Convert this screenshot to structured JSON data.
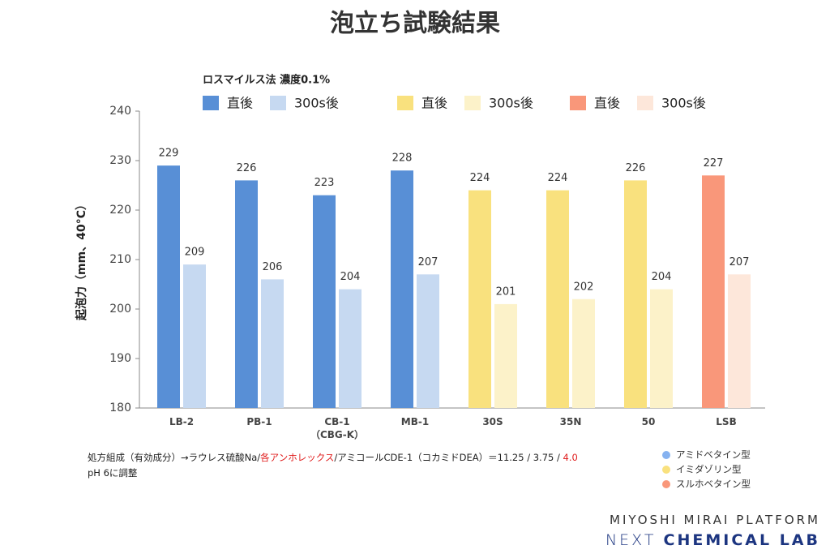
{
  "chart_data": {
    "type": "bar",
    "title": "泡立ち試験結果",
    "legend_title": "ロスマイルス法 濃度0.1%",
    "y_label": "起泡力（mm、40°C）",
    "categories": [
      "LB-2",
      "PB-1",
      "CB-1\n（CBG-K）",
      "MB-1",
      "30S",
      "35N",
      "50",
      "LSB"
    ],
    "series": [
      {
        "name": "直後",
        "values": [
          229,
          226,
          223,
          228,
          224,
          224,
          226,
          227
        ],
        "colors": [
          "#588fd6",
          "#588fd6",
          "#588fd6",
          "#588fd6",
          "#f9e17e",
          "#f9e17e",
          "#f9e17e",
          "#f9977a"
        ]
      },
      {
        "name": "300s後",
        "values": [
          209,
          206,
          204,
          207,
          201,
          202,
          204,
          207
        ],
        "colors": [
          "#c6d9f1",
          "#c6d9f1",
          "#c6d9f1",
          "#c6d9f1",
          "#fcf2c9",
          "#fcf2c9",
          "#fcf2c9",
          "#fde7da"
        ]
      }
    ],
    "legend_colors": [
      [
        "#588fd6",
        "#c6d9f1"
      ],
      [
        "#f9e17e",
        "#fcf2c9"
      ],
      [
        "#f9977a",
        "#fde7da"
      ]
    ],
    "ylim": [
      180,
      240
    ],
    "yticks": [
      180,
      190,
      200,
      210,
      220,
      230,
      240
    ],
    "note": [
      {
        "text": "処方組成（有効成分）→ラウレス硫酸Na/",
        "color": "#222222"
      },
      {
        "text": "各アンホレックス",
        "color": "#e02020"
      },
      {
        "text": "/アミコールCDE-1（コカミドDEA）＝11.25 / 3.75 / ",
        "color": "#222222"
      },
      {
        "text": "4.0",
        "color": "#e02020"
      }
    ],
    "note_line2": "pH 6に調整",
    "type_legend": [
      {
        "name": "アミドベタイン型",
        "color": "#86b2f0"
      },
      {
        "name": "イミダゾリン型",
        "color": "#f9e17e"
      },
      {
        "name": "スルホベタイン型",
        "color": "#f9977a"
      }
    ]
  },
  "brand": {
    "line1": "MIYOSHI MIRAI PLATFORM",
    "line2_light": "NEXT",
    "line2_bold": "CHEMICAL LAB"
  }
}
